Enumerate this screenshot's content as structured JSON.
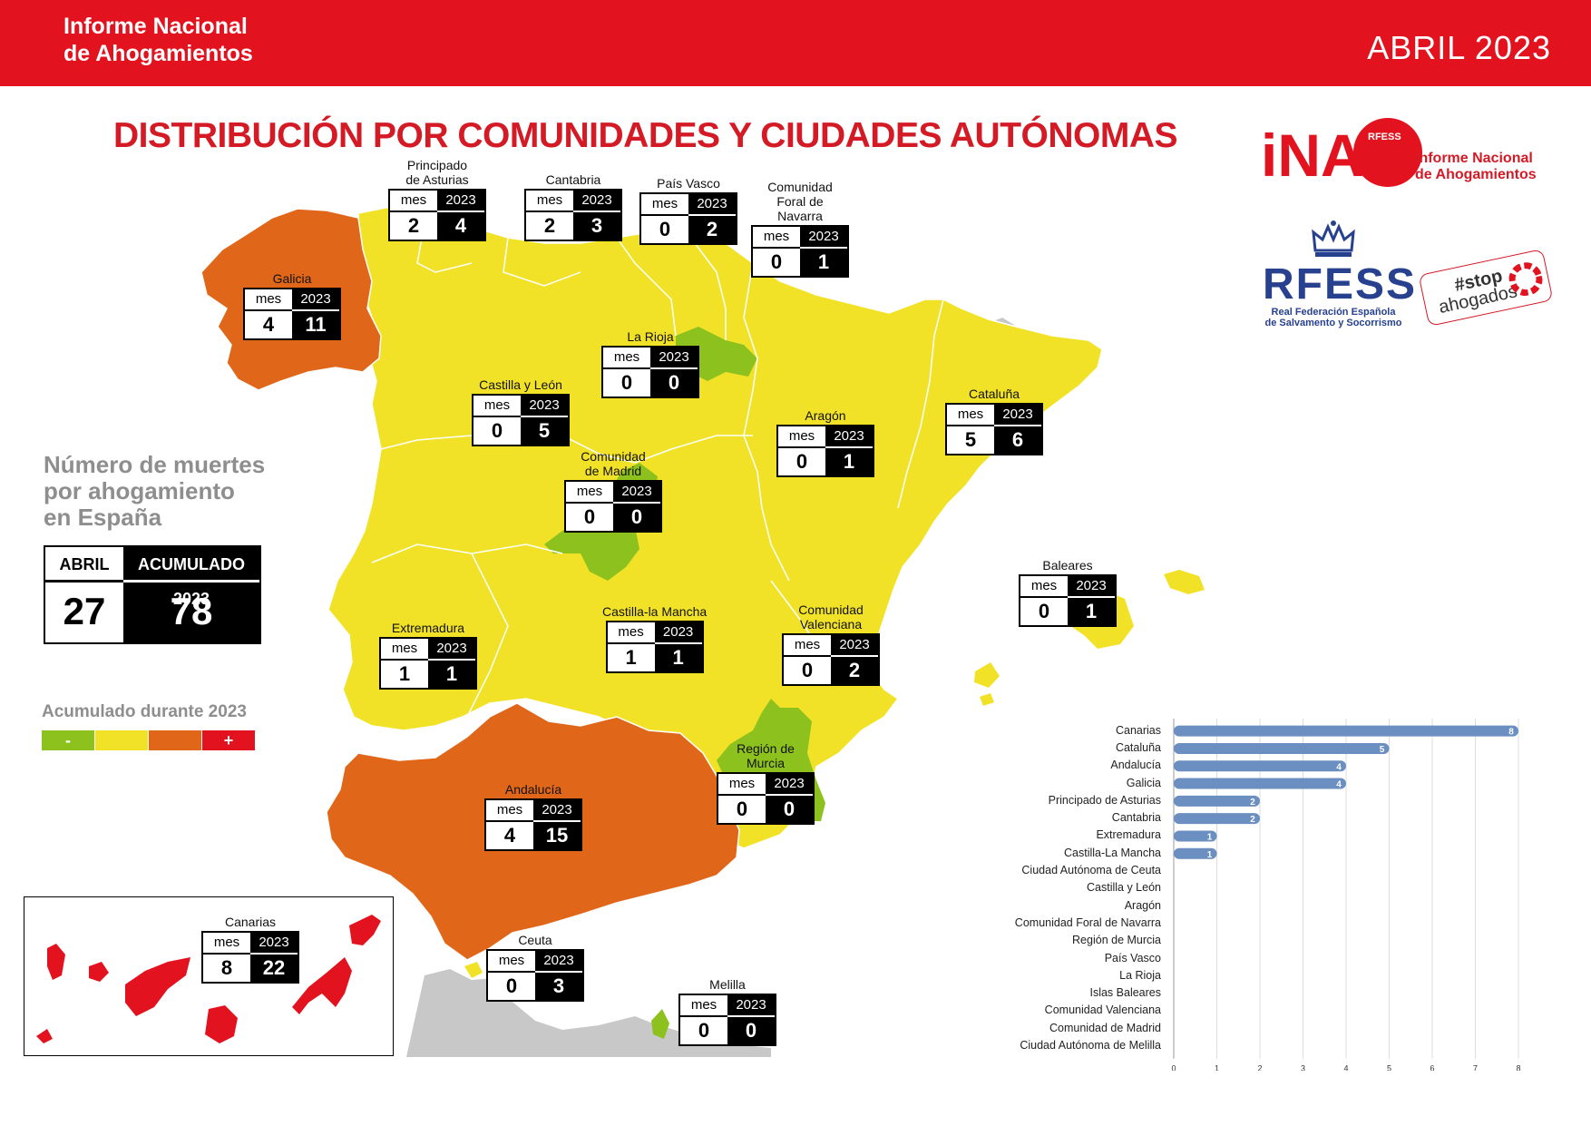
{
  "header": {
    "brand_line1": "Informe Nacional",
    "brand_line2": "de Ahogamientos",
    "date": "ABRIL 2023"
  },
  "title": "DISTRIBUCIÓN POR COMUNIDADES Y CIUDADES AUTÓNOMAS",
  "stat_headers": {
    "month": "mes",
    "year": "2023"
  },
  "regions": [
    {
      "key": "asturias",
      "name_lines": [
        "Principado",
        "de Asturias"
      ],
      "mes": "2",
      "year_total": "4",
      "tier": "yellow"
    },
    {
      "key": "cantabria",
      "name_lines": [
        "Cantabria"
      ],
      "mes": "2",
      "year_total": "3",
      "tier": "yellow"
    },
    {
      "key": "pais-vasco",
      "name_lines": [
        "País Vasco"
      ],
      "mes": "0",
      "year_total": "2",
      "tier": "yellow"
    },
    {
      "key": "navarra",
      "name_lines": [
        "Comunidad",
        "Foral de",
        "Navarra"
      ],
      "mes": "0",
      "year_total": "1",
      "tier": "yellow"
    },
    {
      "key": "galicia",
      "name_lines": [
        "Galicia"
      ],
      "mes": "4",
      "year_total": "11",
      "tier": "orange"
    },
    {
      "key": "la-rioja",
      "name_lines": [
        "La Rioja"
      ],
      "mes": "0",
      "year_total": "0",
      "tier": "green"
    },
    {
      "key": "castilla-leon",
      "name_lines": [
        "Castilla y León"
      ],
      "mes": "0",
      "year_total": "5",
      "tier": "yellow"
    },
    {
      "key": "aragon",
      "name_lines": [
        "Aragón"
      ],
      "mes": "0",
      "year_total": "1",
      "tier": "yellow"
    },
    {
      "key": "cataluna",
      "name_lines": [
        "Cataluña"
      ],
      "mes": "5",
      "year_total": "6",
      "tier": "yellow"
    },
    {
      "key": "madrid",
      "name_lines": [
        "Comunidad",
        "de Madrid"
      ],
      "mes": "0",
      "year_total": "0",
      "tier": "green"
    },
    {
      "key": "baleares",
      "name_lines": [
        "Baleares"
      ],
      "mes": "0",
      "year_total": "1",
      "tier": "yellow"
    },
    {
      "key": "extremadura",
      "name_lines": [
        "Extremadura"
      ],
      "mes": "1",
      "year_total": "1",
      "tier": "yellow"
    },
    {
      "key": "castilla-mancha",
      "name_lines": [
        "Castilla-la Mancha"
      ],
      "mes": "1",
      "year_total": "1",
      "tier": "yellow"
    },
    {
      "key": "valenciana",
      "name_lines": [
        "Comunidad",
        "Valenciana"
      ],
      "mes": "0",
      "year_total": "2",
      "tier": "yellow"
    },
    {
      "key": "murcia",
      "name_lines": [
        "Región de",
        "Murcia"
      ],
      "mes": "0",
      "year_total": "0",
      "tier": "green"
    },
    {
      "key": "andalucia",
      "name_lines": [
        "Andalucía"
      ],
      "mes": "4",
      "year_total": "15",
      "tier": "orange"
    },
    {
      "key": "canarias",
      "name_lines": [
        "Canarias"
      ],
      "mes": "8",
      "year_total": "22",
      "tier": "red"
    },
    {
      "key": "ceuta",
      "name_lines": [
        "Ceuta"
      ],
      "mes": "0",
      "year_total": "3",
      "tier": "yellow"
    },
    {
      "key": "melilla",
      "name_lines": [
        "Melilla"
      ],
      "mes": "0",
      "year_total": "0",
      "tier": "green"
    }
  ],
  "summary": {
    "title_lines": [
      "Número de muertes",
      "por ahogamiento",
      "en España"
    ],
    "month_label": "ABRIL",
    "month_value": "27",
    "cumulative_label": "ACUMULADO 2023",
    "cumulative_value": "78"
  },
  "legend": {
    "title": "Acumulado durante 2023",
    "items": [
      {
        "label": "-",
        "color": "#8dc11e"
      },
      {
        "label": "",
        "color": "#f2e227"
      },
      {
        "label": "",
        "color": "#e0661a"
      },
      {
        "label": "+",
        "color": "#e2131f"
      }
    ]
  },
  "colors": {
    "red": "#e2131f",
    "orange": "#e0661a",
    "yellow": "#f2e227",
    "green": "#8dc11e",
    "grey": "#c8c8c8",
    "bar": "#6b8fc0"
  },
  "logos": {
    "ina_mark": "iNA",
    "ina_badge": "RFESS",
    "ina_text_line1": "Informe Nacional",
    "ina_text_line2": "de Ahogamientos",
    "rfess_big": "RFESS",
    "rfess_sub_line1": "Real Federación Española",
    "rfess_sub_line2": "de Salvamento y Socorrismo",
    "stop_line1": "#stop",
    "stop_line2": "ahogados"
  },
  "chart_data": {
    "type": "bar",
    "orientation": "horizontal",
    "categories": [
      "Canarias",
      "Cataluña",
      "Andalucía",
      "Galicia",
      "Principado de Asturias",
      "Cantabria",
      "Extremadura",
      "Castilla-La Mancha",
      "Ciudad Autónoma de Ceuta",
      "Castilla y León",
      "Aragón",
      "Comunidad Foral de Navarra",
      "Región de Murcia",
      "País Vasco",
      "La Rioja",
      "Islas Baleares",
      "Comunidad Valenciana",
      "Comunidad de Madrid",
      "Ciudad Autónoma de Melilla"
    ],
    "values": [
      8,
      5,
      4,
      4,
      2,
      2,
      1,
      1,
      null,
      null,
      null,
      null,
      null,
      null,
      null,
      null,
      null,
      null,
      null
    ],
    "xlim": [
      0,
      8
    ],
    "xticks": [
      "0",
      "1",
      "2",
      "3",
      "4",
      "5",
      "6",
      "7",
      "8"
    ],
    "grid": "vertical"
  }
}
